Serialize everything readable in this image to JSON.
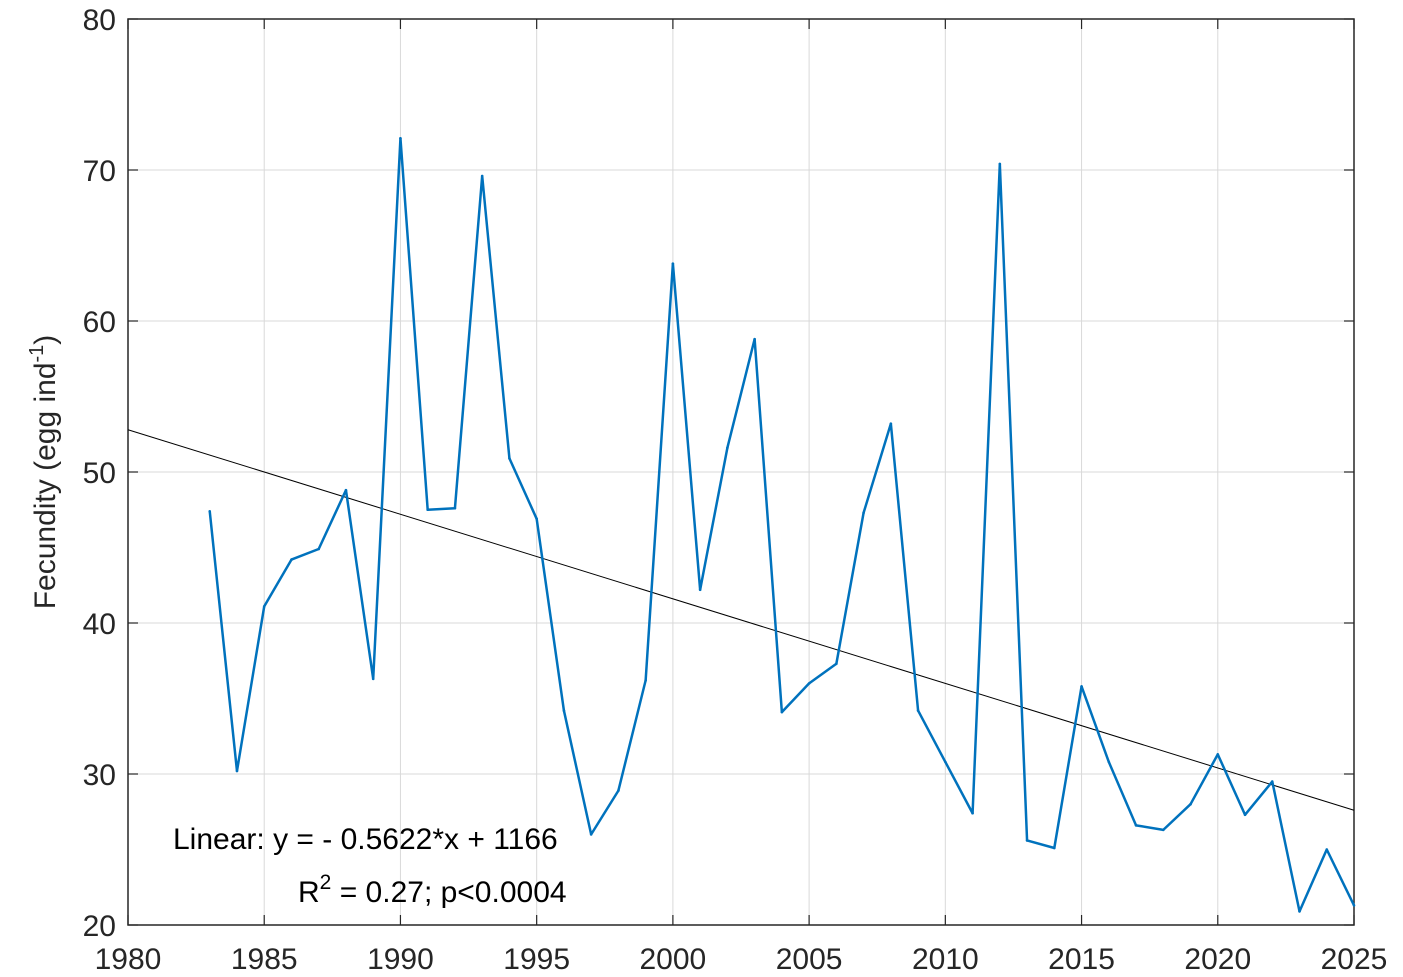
{
  "chart_data": {
    "type": "line",
    "title": "",
    "xlabel": "",
    "ylabel": "Fecundity (egg ind",
    "ylabel_superscript": "-1",
    "ylabel_close": ")",
    "xlim": [
      1980,
      2025
    ],
    "ylim": [
      20,
      80
    ],
    "xticks": [
      "1980",
      "1985",
      "1990",
      "1995",
      "2000",
      "2005",
      "2010",
      "2015",
      "2020",
      "2025"
    ],
    "yticks": [
      "20",
      "30",
      "40",
      "50",
      "60",
      "70",
      "80"
    ],
    "grid": true,
    "series": [
      {
        "color": "#0072BD",
        "x": [
          1983,
          1984,
          1985,
          1986,
          1987,
          1988,
          1989,
          1990,
          1991,
          1992,
          1993,
          1994,
          1995,
          1996,
          1997,
          1998,
          1999,
          2000,
          2001,
          2002,
          2003,
          2004,
          2005,
          2006,
          2007,
          2008,
          2009,
          2010,
          2011,
          2012,
          2013,
          2014,
          2015,
          2016,
          2017,
          2018,
          2019,
          2020,
          2021,
          2022,
          2023,
          2024,
          2025
        ],
        "y": [
          47.4,
          30.2,
          41.1,
          44.2,
          44.9,
          48.8,
          36.3,
          72.1,
          47.5,
          47.6,
          69.6,
          50.9,
          46.9,
          34.2,
          26.0,
          28.9,
          36.2,
          63.8,
          42.2,
          51.6,
          58.8,
          34.1,
          36.0,
          37.3,
          47.3,
          53.2,
          34.2,
          30.8,
          27.4,
          70.4,
          25.6,
          25.1,
          35.8,
          30.8,
          26.6,
          26.3,
          28.0,
          31.3,
          27.3,
          29.5,
          20.9,
          25.0,
          21.3
        ]
      }
    ],
    "trendline": {
      "color": "#000000",
      "slope": -0.5622,
      "intercept": 1166,
      "x": [
        1980,
        2025
      ],
      "y": [
        52.8,
        27.6
      ]
    },
    "annotations": {
      "line1": "Linear:  y = - 0.5622*x + 1166",
      "line2_prefix": "R",
      "line2_sup": "2",
      "line2_rest": " = 0.27; p<0.0004"
    }
  }
}
